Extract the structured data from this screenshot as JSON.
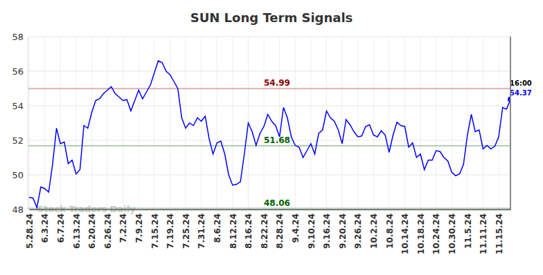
{
  "chart_data": {
    "type": "line",
    "title": "SUN Long Term Signals",
    "categories": [
      "5.28.24",
      null,
      null,
      null,
      "6.3.24",
      null,
      null,
      null,
      "6.7.24",
      null,
      null,
      null,
      "6.13.24",
      null,
      null,
      null,
      "6.20.24",
      null,
      null,
      null,
      "6.26.24",
      null,
      null,
      null,
      "7.2.24",
      null,
      null,
      null,
      "7.9.24",
      null,
      null,
      null,
      "7.15.24",
      null,
      null,
      null,
      "7.19.24",
      null,
      null,
      null,
      "7.25.24",
      null,
      null,
      null,
      "7.31.24",
      null,
      null,
      null,
      "8.6.24",
      null,
      null,
      null,
      "8.12.24",
      null,
      null,
      null,
      "8.16.24",
      null,
      null,
      null,
      "8.22.24",
      null,
      null,
      null,
      "8.28.24",
      null,
      null,
      null,
      "9.4.24",
      null,
      null,
      null,
      "9.10.24",
      null,
      null,
      null,
      "9.16.24",
      null,
      null,
      null,
      "9.20.24",
      null,
      null,
      null,
      "9.26.24",
      null,
      null,
      null,
      "10.2.24",
      null,
      null,
      null,
      "10.8.24",
      null,
      null,
      null,
      "10.14.24",
      null,
      null,
      null,
      "10.18.24",
      null,
      null,
      null,
      "10.24.24",
      null,
      null,
      null,
      "10.30.24",
      null,
      null,
      null,
      "11.5.24",
      null,
      null,
      null,
      "11.11.24",
      null,
      null,
      null,
      "11.15.24",
      null,
      null,
      null
    ],
    "series": [
      {
        "color": "#0000ff",
        "values": [
          48.7,
          48.65,
          48.1,
          49.3,
          49.2,
          49.0,
          50.6,
          52.7,
          51.8,
          51.9,
          50.65,
          50.85,
          50.05,
          50.3,
          52.85,
          52.7,
          53.6,
          54.3,
          54.4,
          54.7,
          54.9,
          55.1,
          54.7,
          54.5,
          54.3,
          54.35,
          53.7,
          54.3,
          54.9,
          54.4,
          54.8,
          55.2,
          55.9,
          56.6,
          56.5,
          56.0,
          55.8,
          55.4,
          55.0,
          53.3,
          52.7,
          53.0,
          52.85,
          53.3,
          53.1,
          53.4,
          52.1,
          51.2,
          51.85,
          51.95,
          51.2,
          50.0,
          49.4,
          49.45,
          49.6,
          51.2,
          53.0,
          52.5,
          51.7,
          52.4,
          52.8,
          53.5,
          53.1,
          52.85,
          52.2,
          53.9,
          53.3,
          52.2,
          51.7,
          51.6,
          51.0,
          51.4,
          51.8,
          51.2,
          52.4,
          52.6,
          53.7,
          53.3,
          53.1,
          52.6,
          51.8,
          53.2,
          52.9,
          52.5,
          52.2,
          52.25,
          52.8,
          52.9,
          52.3,
          52.2,
          52.55,
          52.3,
          51.3,
          52.3,
          53.05,
          52.85,
          52.8,
          51.6,
          51.85,
          51.0,
          51.2,
          50.3,
          50.85,
          50.85,
          51.4,
          51.35,
          51.0,
          50.8,
          50.15,
          49.95,
          50.05,
          50.6,
          52.3,
          53.5,
          52.5,
          52.6,
          51.5,
          51.7,
          51.5,
          51.65,
          52.2,
          53.9,
          53.8,
          54.37
        ]
      }
    ],
    "ylim": [
      48,
      58
    ],
    "yticks": [
      48,
      50,
      52,
      54,
      56,
      58
    ],
    "grid": true,
    "reference_lines": [
      {
        "value": 54.99,
        "color": "#8b0000"
      },
      {
        "value": 51.68,
        "color": "#006400"
      },
      {
        "value": 48.06,
        "color": "#006400"
      }
    ],
    "last_time": "16:00",
    "watermark": "Stock Traders Daily"
  }
}
